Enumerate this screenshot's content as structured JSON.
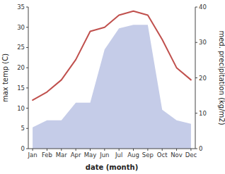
{
  "chart_data": {
    "type": "line",
    "xlabel": "date (month)",
    "ylabel": "max temp (C)",
    "y2label": "med. precipitation (kg/m2)",
    "categories": [
      "Jan",
      "Feb",
      "Mar",
      "Apr",
      "May",
      "Jun",
      "Jul",
      "Aug",
      "Sep",
      "Oct",
      "Nov",
      "Dec"
    ],
    "series": [
      {
        "type": "line",
        "color": "#c0504d",
        "values": [
          12,
          14,
          17,
          22,
          29,
          30,
          33,
          34,
          33,
          27,
          20,
          17
        ]
      },
      {
        "type": "area",
        "color": "#c5cce8",
        "axis": "y2",
        "values": [
          6,
          8,
          8,
          13,
          13,
          28,
          34,
          35,
          35,
          11,
          8,
          7
        ]
      }
    ],
    "ylim": [
      0,
      35
    ],
    "yticks": [
      0,
      5,
      10,
      15,
      20,
      25,
      30,
      35
    ],
    "y2lim": [
      0,
      40
    ],
    "y2ticks": [
      0,
      10,
      20,
      30,
      40
    ],
    "grid": false
  }
}
